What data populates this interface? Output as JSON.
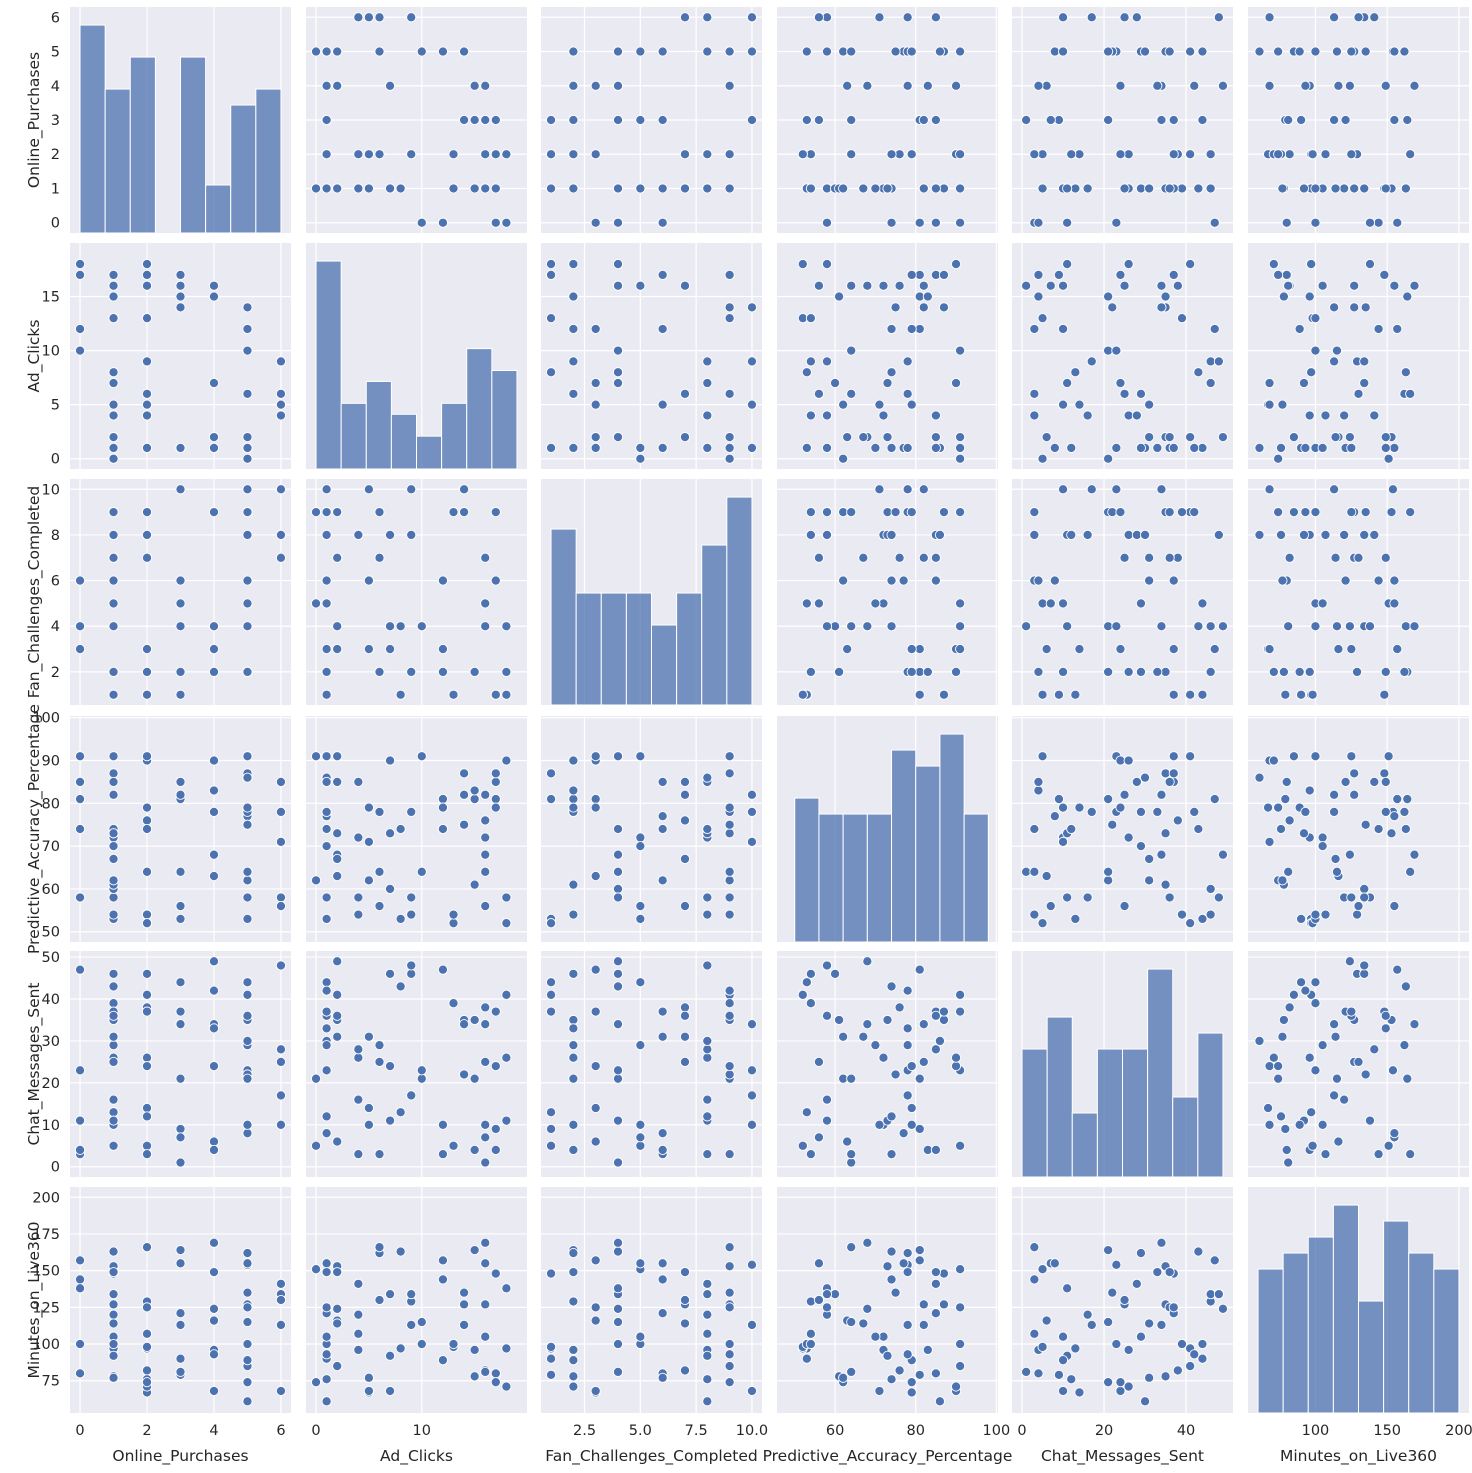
{
  "chart_data": {
    "type": "pairplot",
    "variables": [
      "Online_Purchases",
      "Ad_Clicks",
      "Fan_Challenges_Completed",
      "Predictive_Accuracy_Percentage",
      "Chat_Messages_Sent",
      "Minutes_on_Live360"
    ],
    "axis_labels": [
      "Online_Purchases",
      "Ad_Clicks",
      "Fan_Challenges_Completed",
      "Predictive_Accuracy_Percentage",
      "Chat_Messages_Sent",
      "Minutes_on_Live360"
    ],
    "x_ticks": [
      [
        0,
        2,
        4,
        6
      ],
      [
        0,
        10
      ],
      [
        2.5,
        5.0,
        7.5,
        10.0
      ],
      [
        60,
        80,
        100
      ],
      [
        0,
        20,
        40
      ],
      [
        100,
        150,
        200
      ]
    ],
    "x_tick_labels": [
      [
        "0",
        "2",
        "4",
        "6"
      ],
      [
        "0",
        "10"
      ],
      [
        "2.5",
        "5.0",
        "7.5",
        "10.0"
      ],
      [
        "60",
        "80",
        "100"
      ],
      [
        "0",
        "20",
        "40"
      ],
      [
        "100",
        "150",
        "200"
      ]
    ],
    "y_ticks": [
      [
        0,
        1,
        2,
        3,
        4,
        5,
        6
      ],
      [
        0,
        5,
        10,
        15
      ],
      [
        2,
        4,
        6,
        8,
        10
      ],
      [
        50,
        60,
        70,
        80,
        90,
        100
      ],
      [
        0,
        10,
        20,
        30,
        40,
        50
      ],
      [
        75,
        100,
        125,
        150,
        175,
        200
      ]
    ],
    "y_tick_labels": [
      [
        "0",
        "1",
        "2",
        "3",
        "4",
        "5",
        "6"
      ],
      [
        "0",
        "5",
        "10",
        "15"
      ],
      [
        "2",
        "4",
        "6",
        "8",
        "10"
      ],
      [
        "50",
        "60",
        "70",
        "80",
        "90",
        "100"
      ],
      [
        "0",
        "10",
        "20",
        "30",
        "40",
        "50"
      ],
      [
        "75",
        "100",
        "125",
        "150",
        "175",
        "200"
      ]
    ],
    "x_range": [
      [
        -0.3,
        6.3
      ],
      [
        -0.95,
        19.95
      ],
      [
        0.55,
        10.45
      ],
      [
        45.6,
        100.4
      ],
      [
        -2.45,
        51.45
      ],
      [
        53.0,
        207.0
      ]
    ],
    "y_range": [
      [
        -0.3,
        6.3
      ],
      [
        -0.95,
        19.95
      ],
      [
        0.55,
        10.45
      ],
      [
        47.6,
        100.4
      ],
      [
        -2.45,
        51.45
      ],
      [
        53.0,
        207.0
      ]
    ],
    "histograms": [
      {
        "edges": [
          0,
          0.75,
          1.5,
          2.25,
          3,
          3.75,
          4.5,
          5.25,
          6
        ],
        "counts": [
          13,
          9,
          11,
          0,
          11,
          3,
          8,
          9
        ]
      },
      {
        "edges": [
          0,
          2.375,
          4.75,
          7.125,
          9.5,
          11.875,
          14.25,
          16.625,
          19
        ],
        "counts": [
          19,
          6,
          8,
          5,
          3,
          6,
          11,
          9
        ]
      },
      {
        "edges": [
          1,
          2.125,
          3.25,
          4.375,
          5.5,
          6.625,
          7.75,
          8.875,
          10
        ],
        "counts": [
          11,
          7,
          7,
          7,
          5,
          7,
          10,
          13
        ]
      },
      {
        "edges": [
          50,
          56,
          62,
          68,
          74,
          80,
          86,
          92,
          98
        ],
        "counts": [
          9,
          8,
          8,
          8,
          12,
          11,
          13,
          8
        ]
      },
      {
        "edges": [
          0,
          6.125,
          12.25,
          18.375,
          24.5,
          30.625,
          36.75,
          42.875,
          49
        ],
        "counts": [
          8,
          10,
          4,
          8,
          8,
          13,
          5,
          9
        ]
      },
      {
        "edges": [
          60,
          77.5,
          95,
          112.5,
          130,
          147.5,
          165,
          182.5,
          200
        ],
        "counts": [
          9,
          10,
          11,
          13,
          7,
          12,
          10,
          9
        ]
      }
    ],
    "grid": true,
    "marker_color": "#4c72b0",
    "background_color": "#eaeaf2",
    "grid_color": "#ffffff"
  }
}
